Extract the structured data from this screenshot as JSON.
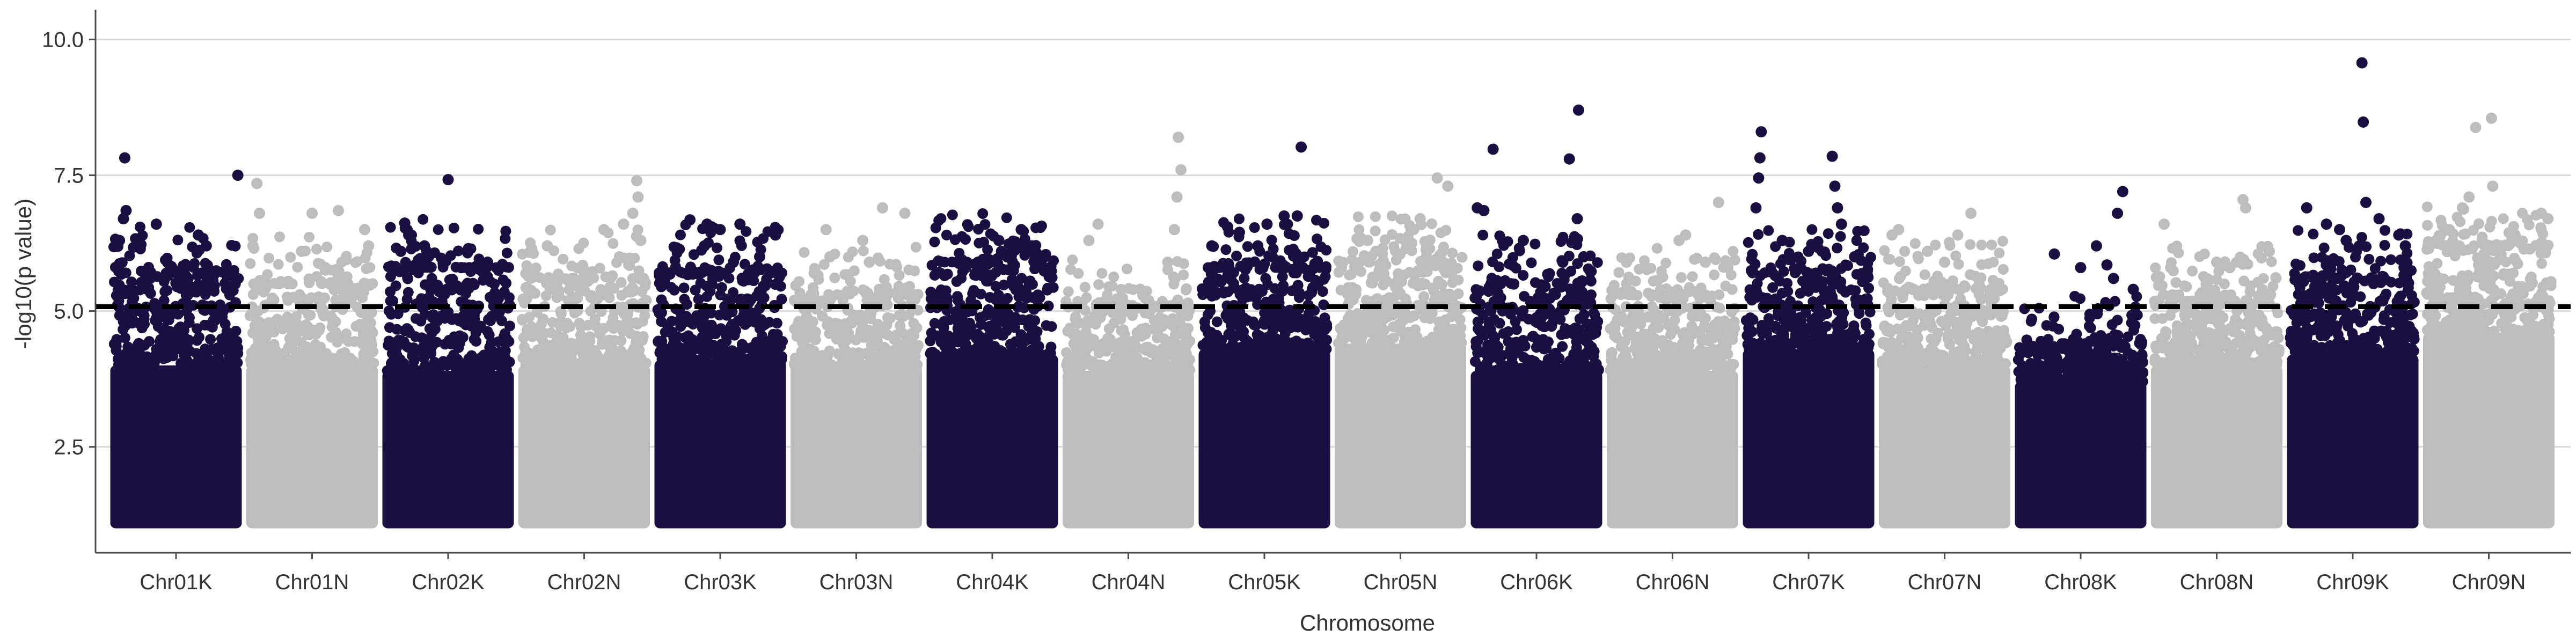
{
  "colors": {
    "K": "#1b0f42",
    "N": "#bdbdbd",
    "threshold_line": "#000000",
    "grid": "#d9d9d9",
    "axis": "#4d4d4d",
    "text": "#333333"
  },
  "chart_data": {
    "type": "scatter",
    "subtype": "manhattan",
    "title": "",
    "xlabel": "Chromosome",
    "ylabel": "-log10(p value)",
    "ylim": [
      0.55,
      10.45
    ],
    "yticks": [
      2.5,
      5.0,
      7.5,
      10.0
    ],
    "ytick_labels": [
      "2.5",
      "5.0",
      "7.5",
      "10.0"
    ],
    "grid": "horizontal major lines",
    "legend": "none",
    "threshold": 5.08,
    "threshold_style": "dashed",
    "point_floor": 1.0,
    "chromosomes": [
      {
        "name": "Chr01K",
        "group": "K",
        "dense_top": 4.0,
        "spread_top": 5.7,
        "peaks": [
          [
            0.11,
            7.82
          ],
          [
            0.12,
            6.85
          ],
          [
            0.1,
            6.7
          ],
          [
            0.07,
            6.3
          ],
          [
            0.35,
            6.6
          ],
          [
            0.67,
            6.4
          ],
          [
            0.73,
            6.2
          ],
          [
            0.97,
            7.5
          ],
          [
            0.92,
            5.7
          ],
          [
            0.55,
            5.6
          ],
          [
            0.95,
            5.5
          ]
        ]
      },
      {
        "name": "Chr01N",
        "group": "N",
        "dense_top": 4.0,
        "spread_top": 5.5,
        "peaks": [
          [
            0.08,
            7.35
          ],
          [
            0.1,
            6.8
          ],
          [
            0.05,
            6.2
          ],
          [
            0.5,
            6.8
          ],
          [
            0.7,
            6.85
          ],
          [
            0.42,
            6.1
          ],
          [
            0.6,
            5.8
          ],
          [
            0.9,
            6.5
          ],
          [
            0.93,
            6.2
          ]
        ]
      },
      {
        "name": "Chr02K",
        "group": "K",
        "dense_top": 3.9,
        "spread_top": 5.8,
        "peaks": [
          [
            0.5,
            7.42
          ],
          [
            0.17,
            6.62
          ],
          [
            0.2,
            6.4
          ],
          [
            0.14,
            6.1
          ],
          [
            0.32,
            6.2
          ],
          [
            0.6,
            5.8
          ],
          [
            0.8,
            5.9
          ]
        ]
      },
      {
        "name": "Chr02N",
        "group": "N",
        "dense_top": 4.0,
        "spread_top": 5.6,
        "peaks": [
          [
            0.1,
            6.15
          ],
          [
            0.22,
            6.2
          ],
          [
            0.65,
            6.5
          ],
          [
            0.8,
            6.6
          ],
          [
            0.9,
            7.4
          ],
          [
            0.91,
            7.1
          ],
          [
            0.87,
            6.8
          ],
          [
            0.93,
            6.3
          ]
        ]
      },
      {
        "name": "Chr03K",
        "group": "K",
        "dense_top": 4.1,
        "spread_top": 5.7,
        "peaks": [
          [
            0.27,
            6.68
          ],
          [
            0.4,
            6.6
          ],
          [
            0.5,
            6.5
          ],
          [
            0.38,
            6.2
          ],
          [
            0.65,
            6.6
          ],
          [
            0.92,
            6.4
          ],
          [
            0.6,
            5.9
          ],
          [
            0.8,
            6.0
          ]
        ]
      },
      {
        "name": "Chr03N",
        "group": "N",
        "dense_top": 4.0,
        "spread_top": 5.3,
        "peaks": [
          [
            0.27,
            6.5
          ],
          [
            0.55,
            6.3
          ],
          [
            0.7,
            6.9
          ],
          [
            0.87,
            6.8
          ],
          [
            0.3,
            6.0
          ],
          [
            0.6,
            5.9
          ]
        ]
      },
      {
        "name": "Chr04K",
        "group": "K",
        "dense_top": 4.2,
        "spread_top": 5.9,
        "peaks": [
          [
            0.55,
            6.3
          ],
          [
            0.57,
            6.1
          ],
          [
            0.72,
            6.5
          ],
          [
            0.65,
            6.1
          ],
          [
            0.8,
            6.2
          ],
          [
            0.9,
            6.0
          ],
          [
            0.3,
            5.8
          ]
        ]
      },
      {
        "name": "Chr04N",
        "group": "N",
        "dense_top": 3.9,
        "spread_top": 5.1,
        "peaks": [
          [
            0.27,
            6.6
          ],
          [
            0.2,
            6.3
          ],
          [
            0.88,
            8.2
          ],
          [
            0.9,
            7.6
          ],
          [
            0.87,
            7.1
          ],
          [
            0.85,
            6.5
          ],
          [
            0.8,
            5.9
          ]
        ]
      },
      {
        "name": "Chr05K",
        "group": "K",
        "dense_top": 4.3,
        "spread_top": 5.8,
        "peaks": [
          [
            0.78,
            8.02
          ],
          [
            0.22,
            6.55
          ],
          [
            0.31,
            6.45
          ],
          [
            0.1,
            6.2
          ],
          [
            0.52,
            6.6
          ],
          [
            0.65,
            6.75
          ],
          [
            0.75,
            6.75
          ],
          [
            0.45,
            6.2
          ]
        ]
      },
      {
        "name": "Chr05N",
        "group": "N",
        "dense_top": 4.4,
        "spread_top": 5.9,
        "peaks": [
          [
            0.25,
            6.3
          ],
          [
            0.6,
            6.5
          ],
          [
            0.65,
            6.7
          ],
          [
            0.78,
            7.45
          ],
          [
            0.86,
            7.3
          ],
          [
            0.7,
            6.2
          ]
        ]
      },
      {
        "name": "Chr06K",
        "group": "K",
        "dense_top": 3.9,
        "spread_top": 5.5,
        "peaks": [
          [
            0.17,
            7.98
          ],
          [
            0.05,
            6.9
          ],
          [
            0.1,
            6.85
          ],
          [
            0.4,
            6.3
          ],
          [
            0.75,
            7.8
          ],
          [
            0.82,
            8.7
          ],
          [
            0.81,
            6.7
          ],
          [
            0.86,
            6.0
          ],
          [
            0.7,
            5.9
          ]
        ]
      },
      {
        "name": "Chr06N",
        "group": "N",
        "dense_top": 3.9,
        "spread_top": 5.3,
        "peaks": [
          [
            0.15,
            5.9
          ],
          [
            0.55,
            6.3
          ],
          [
            0.6,
            6.4
          ],
          [
            0.85,
            7.0
          ],
          [
            0.75,
            5.9
          ],
          [
            0.92,
            5.8
          ]
        ]
      },
      {
        "name": "Chr07K",
        "group": "K",
        "dense_top": 4.3,
        "spread_top": 5.7,
        "peaks": [
          [
            0.14,
            8.3
          ],
          [
            0.13,
            7.82
          ],
          [
            0.12,
            7.45
          ],
          [
            0.1,
            6.9
          ],
          [
            0.3,
            6.3
          ],
          [
            0.5,
            6.1
          ],
          [
            0.68,
            7.85
          ],
          [
            0.7,
            7.3
          ],
          [
            0.72,
            6.9
          ],
          [
            0.75,
            6.6
          ],
          [
            0.85,
            6.0
          ]
        ]
      },
      {
        "name": "Chr07N",
        "group": "N",
        "dense_top": 4.0,
        "spread_top": 5.4,
        "peaks": [
          [
            0.1,
            6.4
          ],
          [
            0.15,
            6.5
          ],
          [
            0.37,
            6.1
          ],
          [
            0.6,
            6.4
          ],
          [
            0.7,
            6.8
          ],
          [
            0.5,
            5.9
          ]
        ]
      },
      {
        "name": "Chr08K",
        "group": "K",
        "dense_top": 3.7,
        "spread_top": 4.4,
        "peaks": [
          [
            0.3,
            6.05
          ],
          [
            0.5,
            5.8
          ],
          [
            0.62,
            6.2
          ],
          [
            0.7,
            5.85
          ],
          [
            0.78,
            6.8
          ],
          [
            0.82,
            7.2
          ],
          [
            0.75,
            5.6
          ],
          [
            0.9,
            5.4
          ]
        ]
      },
      {
        "name": "Chr08N",
        "group": "N",
        "dense_top": 4.0,
        "spread_top": 5.3,
        "peaks": [
          [
            0.1,
            6.6
          ],
          [
            0.15,
            5.8
          ],
          [
            0.5,
            5.9
          ],
          [
            0.6,
            5.8
          ],
          [
            0.7,
            7.05
          ],
          [
            0.72,
            6.9
          ],
          [
            0.9,
            6.1
          ]
        ]
      },
      {
        "name": "Chr09K",
        "group": "K",
        "dense_top": 4.2,
        "spread_top": 5.6,
        "peaks": [
          [
            0.57,
            9.57
          ],
          [
            0.58,
            8.48
          ],
          [
            0.6,
            7.0
          ],
          [
            0.15,
            6.9
          ],
          [
            0.3,
            6.6
          ],
          [
            0.4,
            6.5
          ],
          [
            0.45,
            6.3
          ],
          [
            0.55,
            6.2
          ],
          [
            0.7,
            6.7
          ],
          [
            0.85,
            6.4
          ],
          [
            0.9,
            6.2
          ]
        ]
      },
      {
        "name": "Chr09N",
        "group": "N",
        "dense_top": 4.6,
        "spread_top": 6.2,
        "peaks": [
          [
            0.4,
            8.38
          ],
          [
            0.52,
            8.55
          ],
          [
            0.53,
            7.3
          ],
          [
            0.35,
            7.1
          ],
          [
            0.3,
            6.9
          ],
          [
            0.2,
            6.5
          ],
          [
            0.1,
            6.3
          ],
          [
            0.6,
            6.2
          ],
          [
            0.7,
            6.4
          ],
          [
            0.9,
            6.8
          ],
          [
            0.95,
            6.7
          ]
        ]
      }
    ]
  }
}
